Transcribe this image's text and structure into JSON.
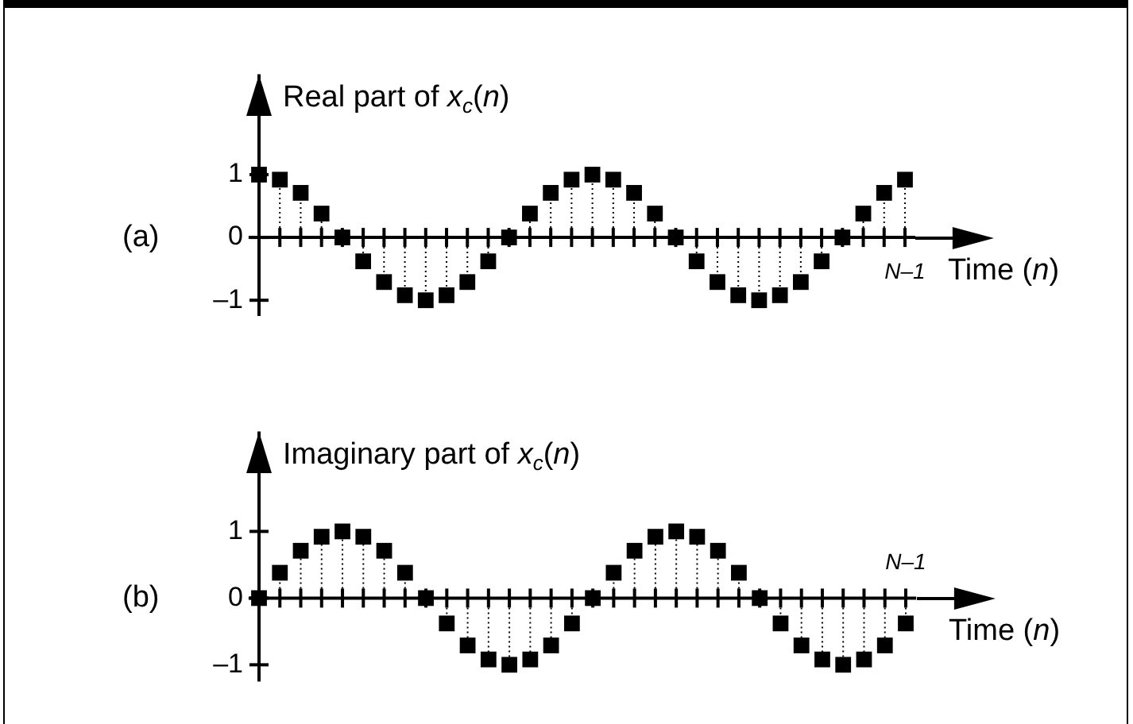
{
  "chart_data": [
    {
      "type": "lollipop",
      "title": "(a)",
      "ylabel": "Real part of x$_{c}$(n)",
      "xlabel": "Time (n)",
      "color": "#000000",
      "marker": "square",
      "line_style": "dotted",
      "categories": [
        null,
        null,
        null,
        null,
        null,
        null,
        null,
        null,
        null,
        null,
        null,
        null,
        null,
        null,
        null,
        null,
        null,
        null,
        null,
        null,
        null,
        null,
        null,
        null,
        null,
        null,
        null,
        null,
        null,
        null,
        null,
        "N–1"
      ],
      "values": [
        1,
        0.92,
        0.71,
        0.38,
        0,
        -0.38,
        -0.71,
        -0.92,
        -1,
        -0.92,
        -0.71,
        -0.38,
        0,
        0.38,
        0.71,
        0.92,
        1,
        0.92,
        0.71,
        0.38,
        0,
        -0.38,
        -0.71,
        -0.92,
        -1,
        -0.92,
        -0.71,
        -0.38,
        0,
        0.38,
        0.71,
        0.92
      ],
      "ylim": [
        -1.25,
        2.6
      ],
      "yticks": [
        {
          "value": -1,
          "label": "–1"
        },
        {
          "value": 0,
          "label": "0"
        },
        {
          "value": 1,
          "label": "1"
        }
      ]
    },
    {
      "type": "lollipop",
      "title": "(b)",
      "ylabel": "Imaginary part of x$_{c}$(n)",
      "xlabel": "Time (n)",
      "color": "#000000",
      "marker": "square",
      "line_style": "dotted",
      "categories": [
        null,
        null,
        null,
        null,
        null,
        null,
        null,
        null,
        null,
        null,
        null,
        null,
        null,
        null,
        null,
        null,
        null,
        null,
        null,
        null,
        null,
        null,
        null,
        null,
        null,
        null,
        null,
        null,
        null,
        null,
        null,
        "N–1"
      ],
      "values": [
        0,
        0.38,
        0.71,
        0.92,
        1,
        0.92,
        0.71,
        0.38,
        0,
        -0.38,
        -0.71,
        -0.92,
        -1,
        -0.92,
        -0.71,
        -0.38,
        0,
        0.38,
        0.71,
        0.92,
        1,
        0.92,
        0.71,
        0.38,
        0,
        -0.38,
        -0.71,
        -0.92,
        -1,
        -0.92,
        -0.71,
        -0.38
      ],
      "ylim": [
        -1.25,
        2.5
      ],
      "yticks": [
        {
          "value": -1,
          "label": "–1"
        },
        {
          "value": 0,
          "label": "0"
        },
        {
          "value": 1,
          "label": "1"
        }
      ]
    }
  ]
}
